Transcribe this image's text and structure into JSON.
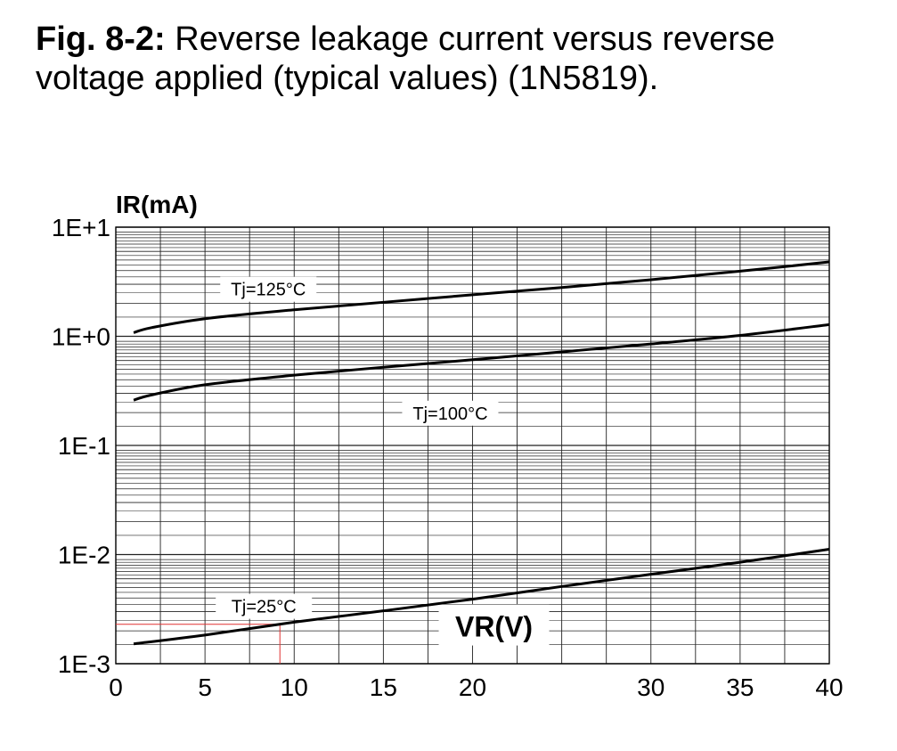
{
  "figure": {
    "label": "Fig. 8-2:",
    "caption": "Reverse leakage current versus reverse voltage applied  (typical values) (1N5819)."
  },
  "chart_data": {
    "type": "line",
    "title": "Fig. 8-2: Reverse leakage current versus reverse voltage applied  (typical values) (1N5819).",
    "xlabel": "VR(V)",
    "ylabel": "IR(mA)",
    "xlim": [
      0,
      40
    ],
    "ylim": [
      0.001,
      10
    ],
    "y_scale": "log",
    "grid": true,
    "x_ticks": [
      0,
      5,
      10,
      15,
      20,
      30,
      35,
      40
    ],
    "y_ticks": [
      {
        "value": 10,
        "label": "1E+1"
      },
      {
        "value": 1,
        "label": "1E+0"
      },
      {
        "value": 0.1,
        "label": "1E-1"
      },
      {
        "value": 0.01,
        "label": "1E-2"
      },
      {
        "value": 0.001,
        "label": "1E-3"
      }
    ],
    "series": [
      {
        "name": "Tj=125°C",
        "x": [
          1,
          2,
          5,
          10,
          15,
          20,
          25,
          30,
          35,
          40
        ],
        "y": [
          1.08,
          1.2,
          1.45,
          1.75,
          2.05,
          2.4,
          2.8,
          3.3,
          3.95,
          4.8
        ]
      },
      {
        "name": "Tj=100°C",
        "x": [
          1,
          2,
          5,
          10,
          15,
          20,
          25,
          30,
          35,
          40
        ],
        "y": [
          0.26,
          0.29,
          0.36,
          0.44,
          0.52,
          0.61,
          0.72,
          0.85,
          1.02,
          1.28
        ]
      },
      {
        "name": "Tj=25°C",
        "x": [
          1,
          5,
          10,
          15,
          20,
          25,
          30,
          35,
          40
        ],
        "y": [
          0.00152,
          0.00183,
          0.0024,
          0.00305,
          0.0039,
          0.0051,
          0.0066,
          0.0085,
          0.0112
        ]
      }
    ],
    "annotation": {
      "x": 9.2,
      "y": 0.0023,
      "color": "#e03030"
    }
  }
}
